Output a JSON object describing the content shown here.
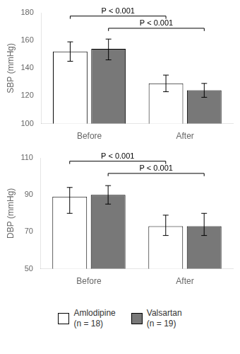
{
  "chart_data": [
    {
      "type": "bar",
      "categories": [
        "Before",
        "After"
      ],
      "ylabel": "SBP (mmHg)",
      "ylim": [
        100,
        180
      ],
      "yticks": [
        100,
        120,
        140,
        160,
        180
      ],
      "grid": false,
      "series": [
        {
          "name": "Amlodipine\n(n = 18)",
          "color": "#ffffff",
          "values": [
            152,
            129
          ],
          "err_upper": [
            7,
            6
          ],
          "err_lower": [
            7,
            6
          ]
        },
        {
          "name": "Valsartan\n(n = 19)",
          "color": "#787878",
          "values": [
            154,
            124
          ],
          "err_upper": [
            7,
            5
          ],
          "err_lower": [
            8,
            5
          ]
        }
      ],
      "annotations": [
        {
          "text": "P < 0.001"
        },
        {
          "text": "P < 0.001"
        }
      ]
    },
    {
      "type": "bar",
      "categories": [
        "Before",
        "After"
      ],
      "ylabel": "DBP (mmHg)",
      "ylim": [
        50,
        110
      ],
      "yticks": [
        50,
        70,
        90,
        110
      ],
      "grid": false,
      "legend": "bottom",
      "series": [
        {
          "name": "Amlodipine\n(n = 18)",
          "color": "#ffffff",
          "values": [
            89,
            73
          ],
          "err_upper": [
            5,
            6
          ],
          "err_lower": [
            9,
            5
          ]
        },
        {
          "name": "Valsartan\n(n = 19)",
          "color": "#787878",
          "values": [
            90,
            73
          ],
          "err_upper": [
            5,
            7
          ],
          "err_lower": [
            5,
            5
          ]
        }
      ],
      "annotations": [
        {
          "text": "P < 0.001"
        },
        {
          "text": "P < 0.001"
        }
      ]
    }
  ]
}
